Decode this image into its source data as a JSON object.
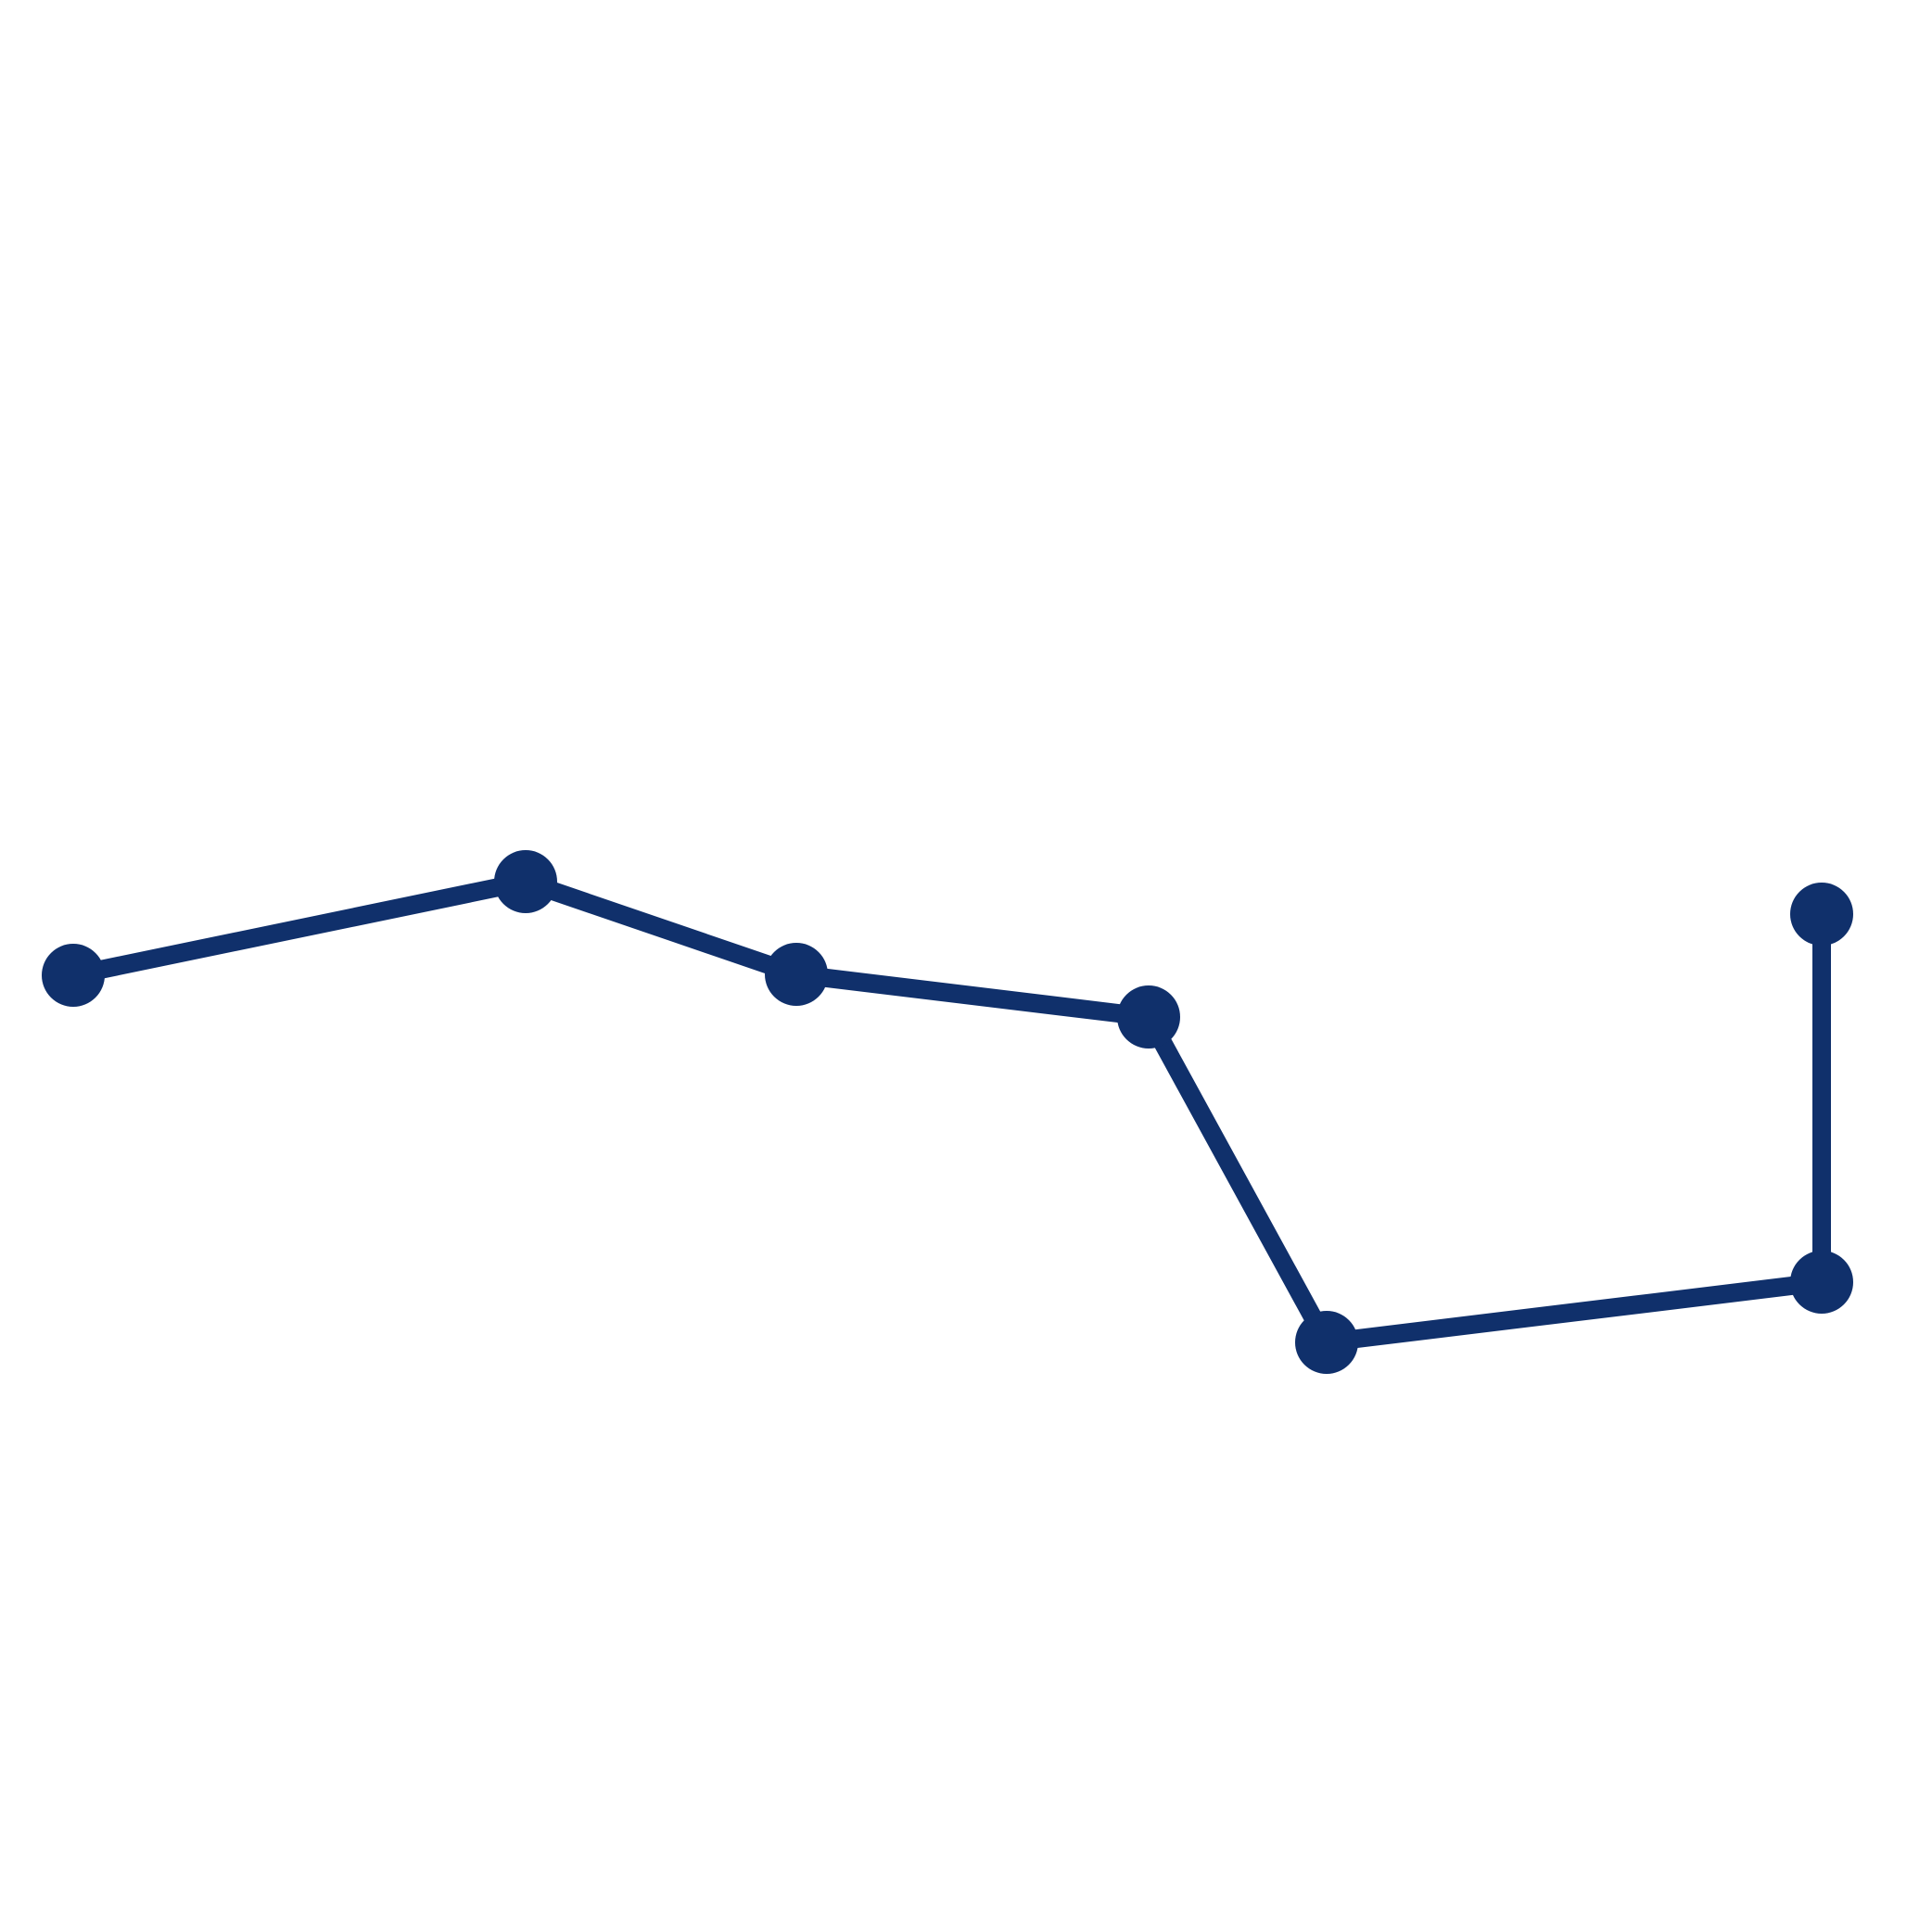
{
  "diagram": {
    "type": "asterism",
    "color": "#10306b",
    "stars": [
      {
        "id": "star-1"
      },
      {
        "id": "star-2"
      },
      {
        "id": "star-3"
      },
      {
        "id": "star-4"
      },
      {
        "id": "star-5"
      },
      {
        "id": "star-6"
      },
      {
        "id": "star-7"
      }
    ],
    "connections": [
      [
        "star-1",
        "star-2"
      ],
      [
        "star-2",
        "star-3"
      ],
      [
        "star-3",
        "star-4"
      ],
      [
        "star-4",
        "star-5"
      ],
      [
        "star-5",
        "star-6"
      ],
      [
        "star-6",
        "star-7"
      ]
    ]
  }
}
